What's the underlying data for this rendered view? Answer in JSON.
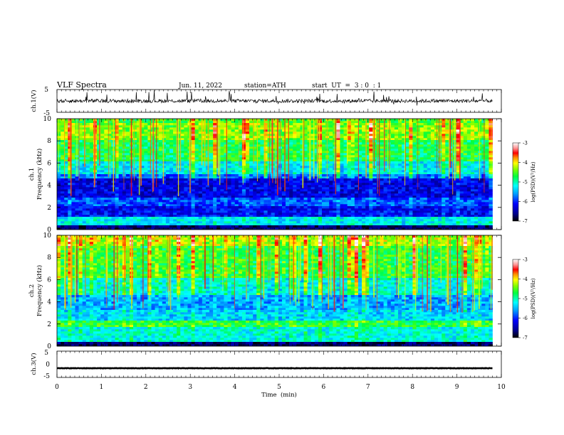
{
  "header": {
    "title": "VLF  Spectra",
    "date": "Jun. 11, 2022",
    "station": "station=ATH",
    "start": "start  UT  =  3 : 0  : 1"
  },
  "chart_data": [
    {
      "type": "line",
      "panel": "ch1-waveform",
      "ylabel": "ch.1(V)",
      "ylim": [
        -5,
        5
      ],
      "yticks": [
        "5",
        "-5"
      ],
      "approx_level": 0
    },
    {
      "type": "heatmap",
      "panel": "ch1-spectrogram",
      "ylabel_channel": "ch.1",
      "ylabel": "Frequency  (kHz)",
      "ylim": [
        0,
        10
      ],
      "yticks": [
        "10",
        "8",
        "6",
        "4",
        "2",
        "0"
      ],
      "xlim": [
        0,
        10
      ],
      "data_extent_min": 9.8,
      "colorbar": {
        "label": "log(PSD)(V²/Hz)",
        "range": [
          -7,
          -3
        ],
        "ticks": [
          "-3",
          "-4",
          "-5",
          "-6",
          "-7"
        ]
      },
      "bands": [
        {
          "f": [
            9.5,
            10.0
          ],
          "level": -4.7
        },
        {
          "f": [
            8.0,
            9.5
          ],
          "level": -4.5
        },
        {
          "f": [
            6.0,
            8.0
          ],
          "level": -4.9
        },
        {
          "f": [
            5.0,
            6.0
          ],
          "level": -5.4
        },
        {
          "f": [
            4.6,
            5.0
          ],
          "level": -5.9
        },
        {
          "f": [
            2.8,
            4.6
          ],
          "level": -6.3
        },
        {
          "f": [
            2.0,
            2.8
          ],
          "level": -5.9
        },
        {
          "f": [
            1.0,
            2.0
          ],
          "level": -6.2
        },
        {
          "f": [
            0.2,
            1.0
          ],
          "level": -5.3
        },
        {
          "f": [
            0.0,
            0.2
          ],
          "level": -7.0
        }
      ]
    },
    {
      "type": "heatmap",
      "panel": "ch2-spectrogram",
      "ylabel_channel": "ch.2",
      "ylabel": "Frequency  (kHz)",
      "ylim": [
        0,
        10
      ],
      "yticks": [
        "10",
        "8",
        "6",
        "4",
        "2",
        "0"
      ],
      "xlim": [
        0,
        10
      ],
      "data_extent_min": 9.8,
      "colorbar": {
        "label": "log(PSD)(V²/Hz)",
        "range": [
          -7,
          -3
        ],
        "ticks": [
          "-3",
          "-4",
          "-5",
          "-6",
          "-7"
        ]
      },
      "bands": [
        {
          "f": [
            9.0,
            10.0
          ],
          "level": -4.4
        },
        {
          "f": [
            6.0,
            9.0
          ],
          "level": -4.8
        },
        {
          "f": [
            4.5,
            6.0
          ],
          "level": -5.3
        },
        {
          "f": [
            3.2,
            4.5
          ],
          "level": -5.6
        },
        {
          "f": [
            2.2,
            3.2
          ],
          "level": -5.4
        },
        {
          "f": [
            1.6,
            2.2
          ],
          "level": -4.7
        },
        {
          "f": [
            0.2,
            1.6
          ],
          "level": -5.2
        },
        {
          "f": [
            0.0,
            0.2
          ],
          "level": -7.0
        }
      ]
    },
    {
      "type": "line",
      "panel": "ch3-waveform",
      "ylabel": "ch.3(V)",
      "ylim": [
        -5,
        5
      ],
      "yticks": [
        "5",
        "0",
        "-5"
      ],
      "approx_level": -1.5,
      "xlabel": "Time  (min)",
      "xlim": [
        0,
        10
      ],
      "xticks": [
        "0",
        "1",
        "2",
        "3",
        "4",
        "5",
        "6",
        "7",
        "8",
        "9",
        "10"
      ]
    }
  ]
}
